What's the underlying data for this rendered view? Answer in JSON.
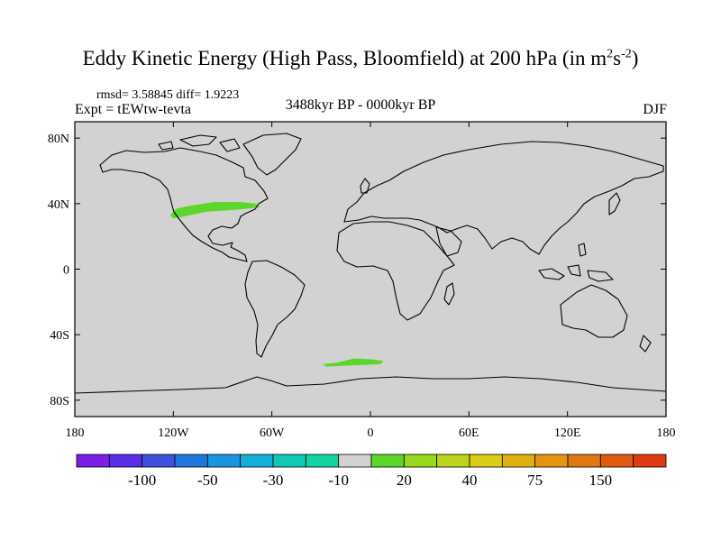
{
  "chart_data": {
    "type": "heatmap",
    "title": "Eddy Kinetic Energy (High Pass, Bloomfield) at 200 hPa (in m",
    "title_unit_exp1": "2",
    "title_unit_mid": "s",
    "title_unit_exp2": "-2",
    "title_close": ")",
    "stats_label": "rmsd= 3.58845  diff= 1.9223",
    "experiment_label": "Expt = tEWtw-tevta",
    "period_label": "3488kyr BP - 0000kyr BP",
    "season_label": "DJF",
    "x_range": [
      -180,
      180
    ],
    "y_range": [
      -90,
      90
    ],
    "x_ticks": [
      {
        "value": -180,
        "label": "180"
      },
      {
        "value": -120,
        "label": "120W"
      },
      {
        "value": -60,
        "label": "60W"
      },
      {
        "value": 0,
        "label": "0"
      },
      {
        "value": 60,
        "label": "60E"
      },
      {
        "value": 120,
        "label": "120E"
      },
      {
        "value": 180,
        "label": "180"
      }
    ],
    "y_ticks": [
      {
        "value": 80,
        "label": "80N"
      },
      {
        "value": 40,
        "label": "40N"
      },
      {
        "value": 0,
        "label": "0"
      },
      {
        "value": -40,
        "label": "40S"
      },
      {
        "value": -80,
        "label": "80S"
      }
    ],
    "background_level": "-10 to 10",
    "anomaly_regions": [
      {
        "name": "north-america-anomaly",
        "level": "10 to 20",
        "color": "#5dd62c",
        "polygon": [
          [
            -120,
            31
          ],
          [
            -112,
            32.5
          ],
          [
            -100,
            35
          ],
          [
            -85,
            36
          ],
          [
            -74,
            37
          ],
          [
            -67,
            38
          ],
          [
            -70,
            40
          ],
          [
            -80,
            41
          ],
          [
            -95,
            41
          ],
          [
            -108,
            39
          ],
          [
            -118,
            37
          ],
          [
            -122,
            33
          ]
        ]
      },
      {
        "name": "southern-ocean-anomaly",
        "level": "10 to 20",
        "color": "#5dd62c",
        "polygon": [
          [
            -29,
            -58
          ],
          [
            -20,
            -57
          ],
          [
            -10,
            -54.5
          ],
          [
            0,
            -55
          ],
          [
            8,
            -56
          ],
          [
            6,
            -58
          ],
          [
            -5,
            -58.5
          ],
          [
            -18,
            -59
          ],
          [
            -27,
            -59.5
          ]
        ]
      }
    ],
    "colorbar": {
      "colors": [
        "#7b1fe6",
        "#5a2ee6",
        "#3d50e0",
        "#1f78e0",
        "#1896e0",
        "#12b0d8",
        "#10c8b8",
        "#12d4a0",
        "#d2d2d2",
        "#5dd62c",
        "#98d81c",
        "#bcd41c",
        "#dccc14",
        "#e0b010",
        "#e69410",
        "#e07810",
        "#e05a10",
        "#e03a10"
      ],
      "labels": [
        {
          "index": 2,
          "text": "-100"
        },
        {
          "index": 4,
          "text": "-50"
        },
        {
          "index": 6,
          "text": "-30"
        },
        {
          "index": 8,
          "text": "-10"
        },
        {
          "index": 10,
          "text": "20"
        },
        {
          "index": 12,
          "text": "40"
        },
        {
          "index": 14,
          "text": "75"
        },
        {
          "index": 16,
          "text": "150"
        }
      ]
    }
  }
}
